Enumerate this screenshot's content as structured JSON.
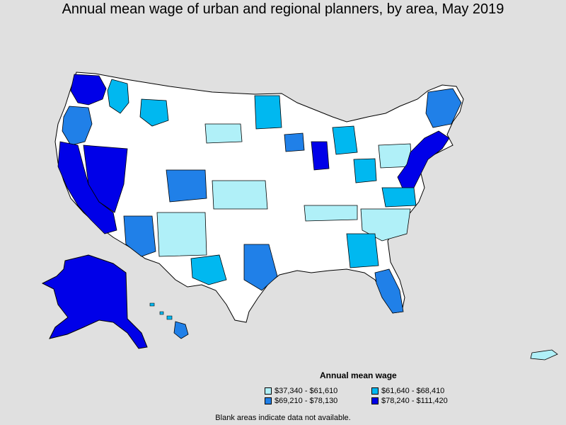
{
  "title": "Annual mean wage of urban and regional planners, by area, May 2019",
  "legend": {
    "title": "Annual mean wage",
    "items": [
      {
        "label": "$37,340 - $61,610",
        "color": "#b0f0f8"
      },
      {
        "label": "$61,640 - $68,410",
        "color": "#00b8f0"
      },
      {
        "label": "$69,210 - $78,130",
        "color": "#2080e8"
      },
      {
        "label": "$78,240 - $111,420",
        "color": "#0000e8"
      }
    ]
  },
  "footnote": "Blank areas indicate data not available.",
  "colors": {
    "background": "#e0e0e0",
    "no_data": "#ffffff",
    "border": "#000000"
  },
  "regions": [
    {
      "id": "contiguous-us",
      "value_class": "none"
    },
    {
      "id": "alaska",
      "value_class": 3
    },
    {
      "id": "hawaii-big-island",
      "value_class": 2
    },
    {
      "id": "nevada",
      "value_class": 3
    },
    {
      "id": "california-coast",
      "value_class": 3
    },
    {
      "id": "washington-west",
      "value_class": 3
    },
    {
      "id": "oregon-west",
      "value_class": 2
    },
    {
      "id": "idaho-north",
      "value_class": 1
    },
    {
      "id": "montana-west",
      "value_class": 1
    },
    {
      "id": "colorado-front-range",
      "value_class": 2
    },
    {
      "id": "arizona",
      "value_class": 2
    },
    {
      "id": "new-mexico",
      "value_class": 0
    },
    {
      "id": "texas-west",
      "value_class": 1
    },
    {
      "id": "texas-east",
      "value_class": 2
    },
    {
      "id": "kansas",
      "value_class": 0
    },
    {
      "id": "nebraska-west",
      "value_class": 0
    },
    {
      "id": "minnesota",
      "value_class": 1
    },
    {
      "id": "wisconsin-south",
      "value_class": 2
    },
    {
      "id": "illinois-chicago",
      "value_class": 3
    },
    {
      "id": "michigan",
      "value_class": 1
    },
    {
      "id": "ohio",
      "value_class": 1
    },
    {
      "id": "pennsylvania",
      "value_class": 0
    },
    {
      "id": "northeast-corridor",
      "value_class": 3
    },
    {
      "id": "new-england",
      "value_class": 2
    },
    {
      "id": "virginia",
      "value_class": 1
    },
    {
      "id": "carolinas",
      "value_class": 0
    },
    {
      "id": "georgia",
      "value_class": 1
    },
    {
      "id": "florida-south",
      "value_class": 2
    },
    {
      "id": "tennessee",
      "value_class": 0
    },
    {
      "id": "puerto-rico",
      "value_class": 0
    }
  ]
}
